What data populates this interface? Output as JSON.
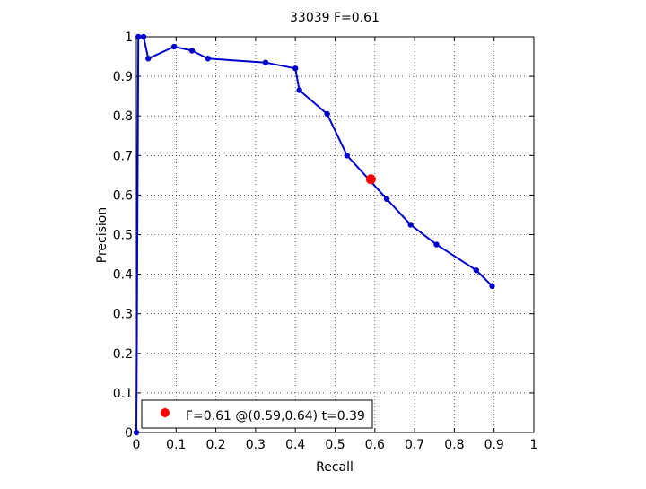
{
  "chart_data": {
    "type": "line",
    "title": "33039 F=0.61",
    "xlabel": "Recall",
    "ylabel": "Precision",
    "xlim": [
      0,
      1
    ],
    "ylim": [
      0,
      1
    ],
    "grid": true,
    "xticks": [
      0,
      0.1,
      0.2,
      0.3,
      0.4,
      0.5,
      0.6,
      0.7,
      0.8,
      0.9,
      1
    ],
    "yticks": [
      0,
      0.1,
      0.2,
      0.3,
      0.4,
      0.5,
      0.6,
      0.7,
      0.8,
      0.9,
      1
    ],
    "xtick_labels": [
      "0",
      "0.1",
      "0.2",
      "0.3",
      "0.4",
      "0.5",
      "0.6",
      "0.7",
      "0.8",
      "0.9",
      "1"
    ],
    "ytick_labels": [
      "0",
      "0.1",
      "0.2",
      "0.3",
      "0.4",
      "0.5",
      "0.6",
      "0.7",
      "0.8",
      "0.9",
      "1"
    ],
    "series": [
      {
        "color": "#0000cc",
        "x": [
          0,
          0.005,
          0.018,
          0.03,
          0.095,
          0.14,
          0.18,
          0.325,
          0.4,
          0.41,
          0.48,
          0.53,
          0.63,
          0.69,
          0.755,
          0.855,
          0.895
        ],
        "y": [
          0,
          1.0,
          1.0,
          0.945,
          0.975,
          0.965,
          0.945,
          0.935,
          0.92,
          0.865,
          0.805,
          0.7,
          0.59,
          0.525,
          0.475,
          0.41,
          0.37
        ]
      }
    ],
    "highlight_point": {
      "x": 0.59,
      "y": 0.64,
      "color": "#ff0000"
    },
    "legend": {
      "placement": "bottom-left",
      "text": "F=0.61 @(0.59,0.64) t=0.39",
      "marker_color": "#ff0000"
    }
  }
}
